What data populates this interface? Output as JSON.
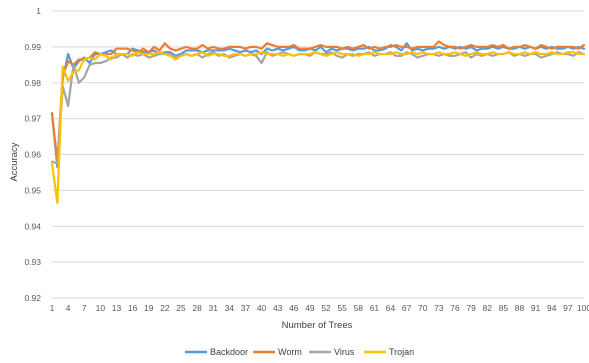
{
  "chart_data": {
    "type": "line",
    "title": "",
    "xlabel": "Number of Trees",
    "ylabel": "Accuracy",
    "ylim": [
      0.92,
      1.0
    ],
    "yticks": [
      "0.92",
      "0.93",
      "0.94",
      "0.95",
      "0.96",
      "0.97",
      "0.98",
      "0.99",
      "1"
    ],
    "xlim": [
      1,
      100
    ],
    "xtick_labels": [
      "1",
      "4",
      "7",
      "10",
      "13",
      "16",
      "19",
      "22",
      "25",
      "28",
      "31",
      "34",
      "37",
      "40",
      "43",
      "46",
      "49",
      "52",
      "55",
      "58",
      "61",
      "64",
      "67",
      "70",
      "73",
      "76",
      "79",
      "82",
      "85",
      "88",
      "91",
      "94",
      "97",
      "100"
    ],
    "grid": "horizontal",
    "legend_position": "bottom",
    "x": [
      1,
      2,
      3,
      4,
      5,
      6,
      7,
      8,
      9,
      10,
      11,
      12,
      13,
      14,
      15,
      16,
      17,
      18,
      19,
      20,
      21,
      22,
      23,
      24,
      25,
      26,
      27,
      28,
      29,
      30,
      31,
      32,
      33,
      34,
      35,
      36,
      37,
      38,
      39,
      40,
      41,
      42,
      43,
      44,
      45,
      46,
      47,
      48,
      49,
      50,
      51,
      52,
      53,
      54,
      55,
      56,
      57,
      58,
      59,
      60,
      61,
      62,
      63,
      64,
      65,
      66,
      67,
      68,
      69,
      70,
      71,
      72,
      73,
      74,
      75,
      76,
      77,
      78,
      79,
      80,
      81,
      82,
      83,
      84,
      85,
      86,
      87,
      88,
      89,
      90,
      91,
      92,
      93,
      94,
      95,
      96,
      97,
      98,
      99,
      100
    ],
    "series": [
      {
        "name": "Backdoor",
        "color": "#5B9BD5",
        "values": [
          0.9715,
          0.9565,
          0.981,
          0.988,
          0.984,
          0.986,
          0.987,
          0.9855,
          0.988,
          0.988,
          0.9885,
          0.989,
          0.988,
          0.988,
          0.988,
          0.9895,
          0.989,
          0.9885,
          0.9885,
          0.989,
          0.988,
          0.9885,
          0.9885,
          0.9875,
          0.988,
          0.989,
          0.989,
          0.989,
          0.9885,
          0.989,
          0.989,
          0.989,
          0.989,
          0.9895,
          0.989,
          0.9885,
          0.989,
          0.9885,
          0.989,
          0.988,
          0.9895,
          0.989,
          0.9895,
          0.989,
          0.9895,
          0.99,
          0.989,
          0.989,
          0.9895,
          0.989,
          0.99,
          0.9885,
          0.9895,
          0.989,
          0.9895,
          0.9895,
          0.989,
          0.9895,
          0.9895,
          0.99,
          0.989,
          0.989,
          0.9895,
          0.9905,
          0.99,
          0.989,
          0.991,
          0.989,
          0.9895,
          0.989,
          0.9895,
          0.9895,
          0.99,
          0.9895,
          0.99,
          0.9895,
          0.99,
          0.9895,
          0.99,
          0.989,
          0.9895,
          0.9895,
          0.99,
          0.9895,
          0.99,
          0.9895,
          0.9895,
          0.99,
          0.9895,
          0.99,
          0.9895,
          0.99,
          0.9895,
          0.99,
          0.9895,
          0.9895,
          0.99,
          0.9895,
          0.99,
          0.9895
        ]
      },
      {
        "name": "Worm",
        "color": "#ED7D31",
        "values": [
          0.9715,
          0.958,
          0.982,
          0.986,
          0.985,
          0.9865,
          0.9865,
          0.987,
          0.9885,
          0.988,
          0.988,
          0.988,
          0.9895,
          0.9895,
          0.9895,
          0.989,
          0.9885,
          0.9895,
          0.9885,
          0.99,
          0.989,
          0.991,
          0.9895,
          0.989,
          0.9895,
          0.99,
          0.9895,
          0.9895,
          0.9905,
          0.9895,
          0.99,
          0.9895,
          0.9895,
          0.99,
          0.99,
          0.99,
          0.9895,
          0.99,
          0.99,
          0.9895,
          0.991,
          0.9905,
          0.99,
          0.99,
          0.99,
          0.9905,
          0.9895,
          0.9895,
          0.9895,
          0.99,
          0.9905,
          0.99,
          0.99,
          0.99,
          0.9895,
          0.99,
          0.9895,
          0.99,
          0.9905,
          0.9895,
          0.99,
          0.9895,
          0.99,
          0.99,
          0.9905,
          0.99,
          0.99,
          0.9895,
          0.99,
          0.99,
          0.99,
          0.99,
          0.9915,
          0.9905,
          0.99,
          0.99,
          0.9895,
          0.99,
          0.9905,
          0.99,
          0.99,
          0.99,
          0.9905,
          0.99,
          0.9905,
          0.9895,
          0.99,
          0.99,
          0.9905,
          0.99,
          0.9895,
          0.9905,
          0.99,
          0.9895,
          0.99,
          0.99,
          0.99,
          0.99,
          0.9895,
          0.9905
        ]
      },
      {
        "name": "Virus",
        "color": "#A5A5A5",
        "values": [
          0.958,
          0.9575,
          0.979,
          0.9735,
          0.985,
          0.98,
          0.9815,
          0.985,
          0.9855,
          0.9855,
          0.986,
          0.987,
          0.987,
          0.988,
          0.987,
          0.988,
          0.9875,
          0.988,
          0.987,
          0.9875,
          0.988,
          0.988,
          0.988,
          0.987,
          0.9875,
          0.988,
          0.9875,
          0.988,
          0.987,
          0.988,
          0.9885,
          0.9875,
          0.988,
          0.987,
          0.9875,
          0.988,
          0.9875,
          0.988,
          0.9875,
          0.9855,
          0.9885,
          0.9875,
          0.988,
          0.9885,
          0.988,
          0.9875,
          0.988,
          0.988,
          0.9875,
          0.9885,
          0.988,
          0.988,
          0.9885,
          0.9875,
          0.987,
          0.988,
          0.9875,
          0.988,
          0.988,
          0.9885,
          0.9875,
          0.988,
          0.988,
          0.9885,
          0.9875,
          0.9875,
          0.9885,
          0.988,
          0.987,
          0.9875,
          0.988,
          0.988,
          0.9875,
          0.988,
          0.9875,
          0.9875,
          0.988,
          0.9885,
          0.987,
          0.988,
          0.9875,
          0.988,
          0.9875,
          0.988,
          0.988,
          0.9885,
          0.9875,
          0.988,
          0.9875,
          0.988,
          0.988,
          0.987,
          0.9875,
          0.988,
          0.9885,
          0.988,
          0.988,
          0.9875,
          0.9885,
          0.988
        ]
      },
      {
        "name": "Trojan",
        "color": "#FFC000",
        "values": [
          0.9575,
          0.9465,
          0.9845,
          0.9805,
          0.983,
          0.9835,
          0.9865,
          0.987,
          0.9865,
          0.988,
          0.9875,
          0.9865,
          0.988,
          0.988,
          0.988,
          0.9875,
          0.9885,
          0.988,
          0.988,
          0.988,
          0.9885,
          0.988,
          0.9875,
          0.9865,
          0.9875,
          0.988,
          0.9875,
          0.988,
          0.9885,
          0.9875,
          0.988,
          0.988,
          0.9875,
          0.9875,
          0.988,
          0.988,
          0.9875,
          0.988,
          0.988,
          0.9885,
          0.988,
          0.988,
          0.988,
          0.9875,
          0.988,
          0.9875,
          0.988,
          0.988,
          0.988,
          0.9885,
          0.988,
          0.9875,
          0.988,
          0.9885,
          0.988,
          0.988,
          0.988,
          0.9875,
          0.988,
          0.988,
          0.9885,
          0.988,
          0.988,
          0.988,
          0.9885,
          0.988,
          0.988,
          0.9885,
          0.988,
          0.9885,
          0.988,
          0.988,
          0.9885,
          0.988,
          0.988,
          0.9885,
          0.988,
          0.9875,
          0.988,
          0.9885,
          0.988,
          0.988,
          0.9885,
          0.988,
          0.988,
          0.9885,
          0.988,
          0.988,
          0.9885,
          0.988,
          0.9885,
          0.988,
          0.988,
          0.9885,
          0.988,
          0.988,
          0.9885,
          0.9885,
          0.988,
          0.988
        ]
      }
    ]
  }
}
